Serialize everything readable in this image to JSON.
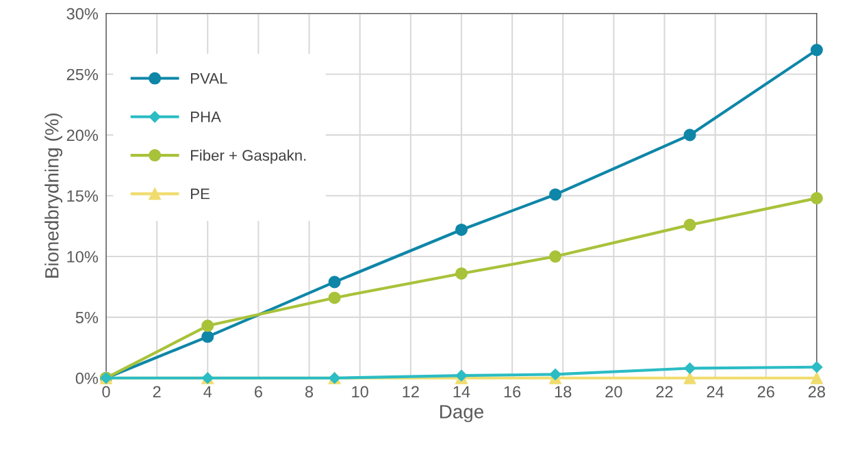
{
  "chart_data": {
    "type": "line",
    "xlabel": "Dage",
    "ylabel": "Bionedbrydning (%)",
    "x": [
      0,
      4,
      9,
      14,
      17.7,
      23,
      28
    ],
    "series": [
      {
        "name": "PVAL",
        "color": "#0e86a8",
        "marker": "circle",
        "values": [
          0,
          3.4,
          7.9,
          12.2,
          15.1,
          20.0,
          27.0
        ]
      },
      {
        "name": "PHA",
        "color": "#2bbcc4",
        "marker": "diamond",
        "values": [
          0,
          0,
          0,
          0.2,
          0.3,
          0.8,
          0.9
        ]
      },
      {
        "name": "Fiber + Gaspakn.",
        "color": "#a8c23a",
        "marker": "circle",
        "values": [
          0,
          4.3,
          6.6,
          8.6,
          10.0,
          12.6,
          14.8
        ]
      },
      {
        "name": "PE",
        "color": "#f0dc6e",
        "marker": "triangle",
        "values": [
          0,
          0,
          0,
          0,
          0,
          0,
          0
        ]
      }
    ],
    "xlim": [
      0,
      28
    ],
    "xticks": [
      0,
      2,
      4,
      6,
      8,
      10,
      12,
      14,
      16,
      18,
      20,
      22,
      24,
      26,
      28
    ],
    "ylim": [
      0,
      30
    ],
    "yticks": [
      {
        "value": 0,
        "label": "0%"
      },
      {
        "value": 5,
        "label": "5%"
      },
      {
        "value": 10,
        "label": "10%"
      },
      {
        "value": 15,
        "label": "15%"
      },
      {
        "value": 20,
        "label": "20%"
      },
      {
        "value": 25,
        "label": "25%"
      },
      {
        "value": 30,
        "label": "30%"
      }
    ],
    "grid": true,
    "legend": "left",
    "line_style": "solid"
  }
}
